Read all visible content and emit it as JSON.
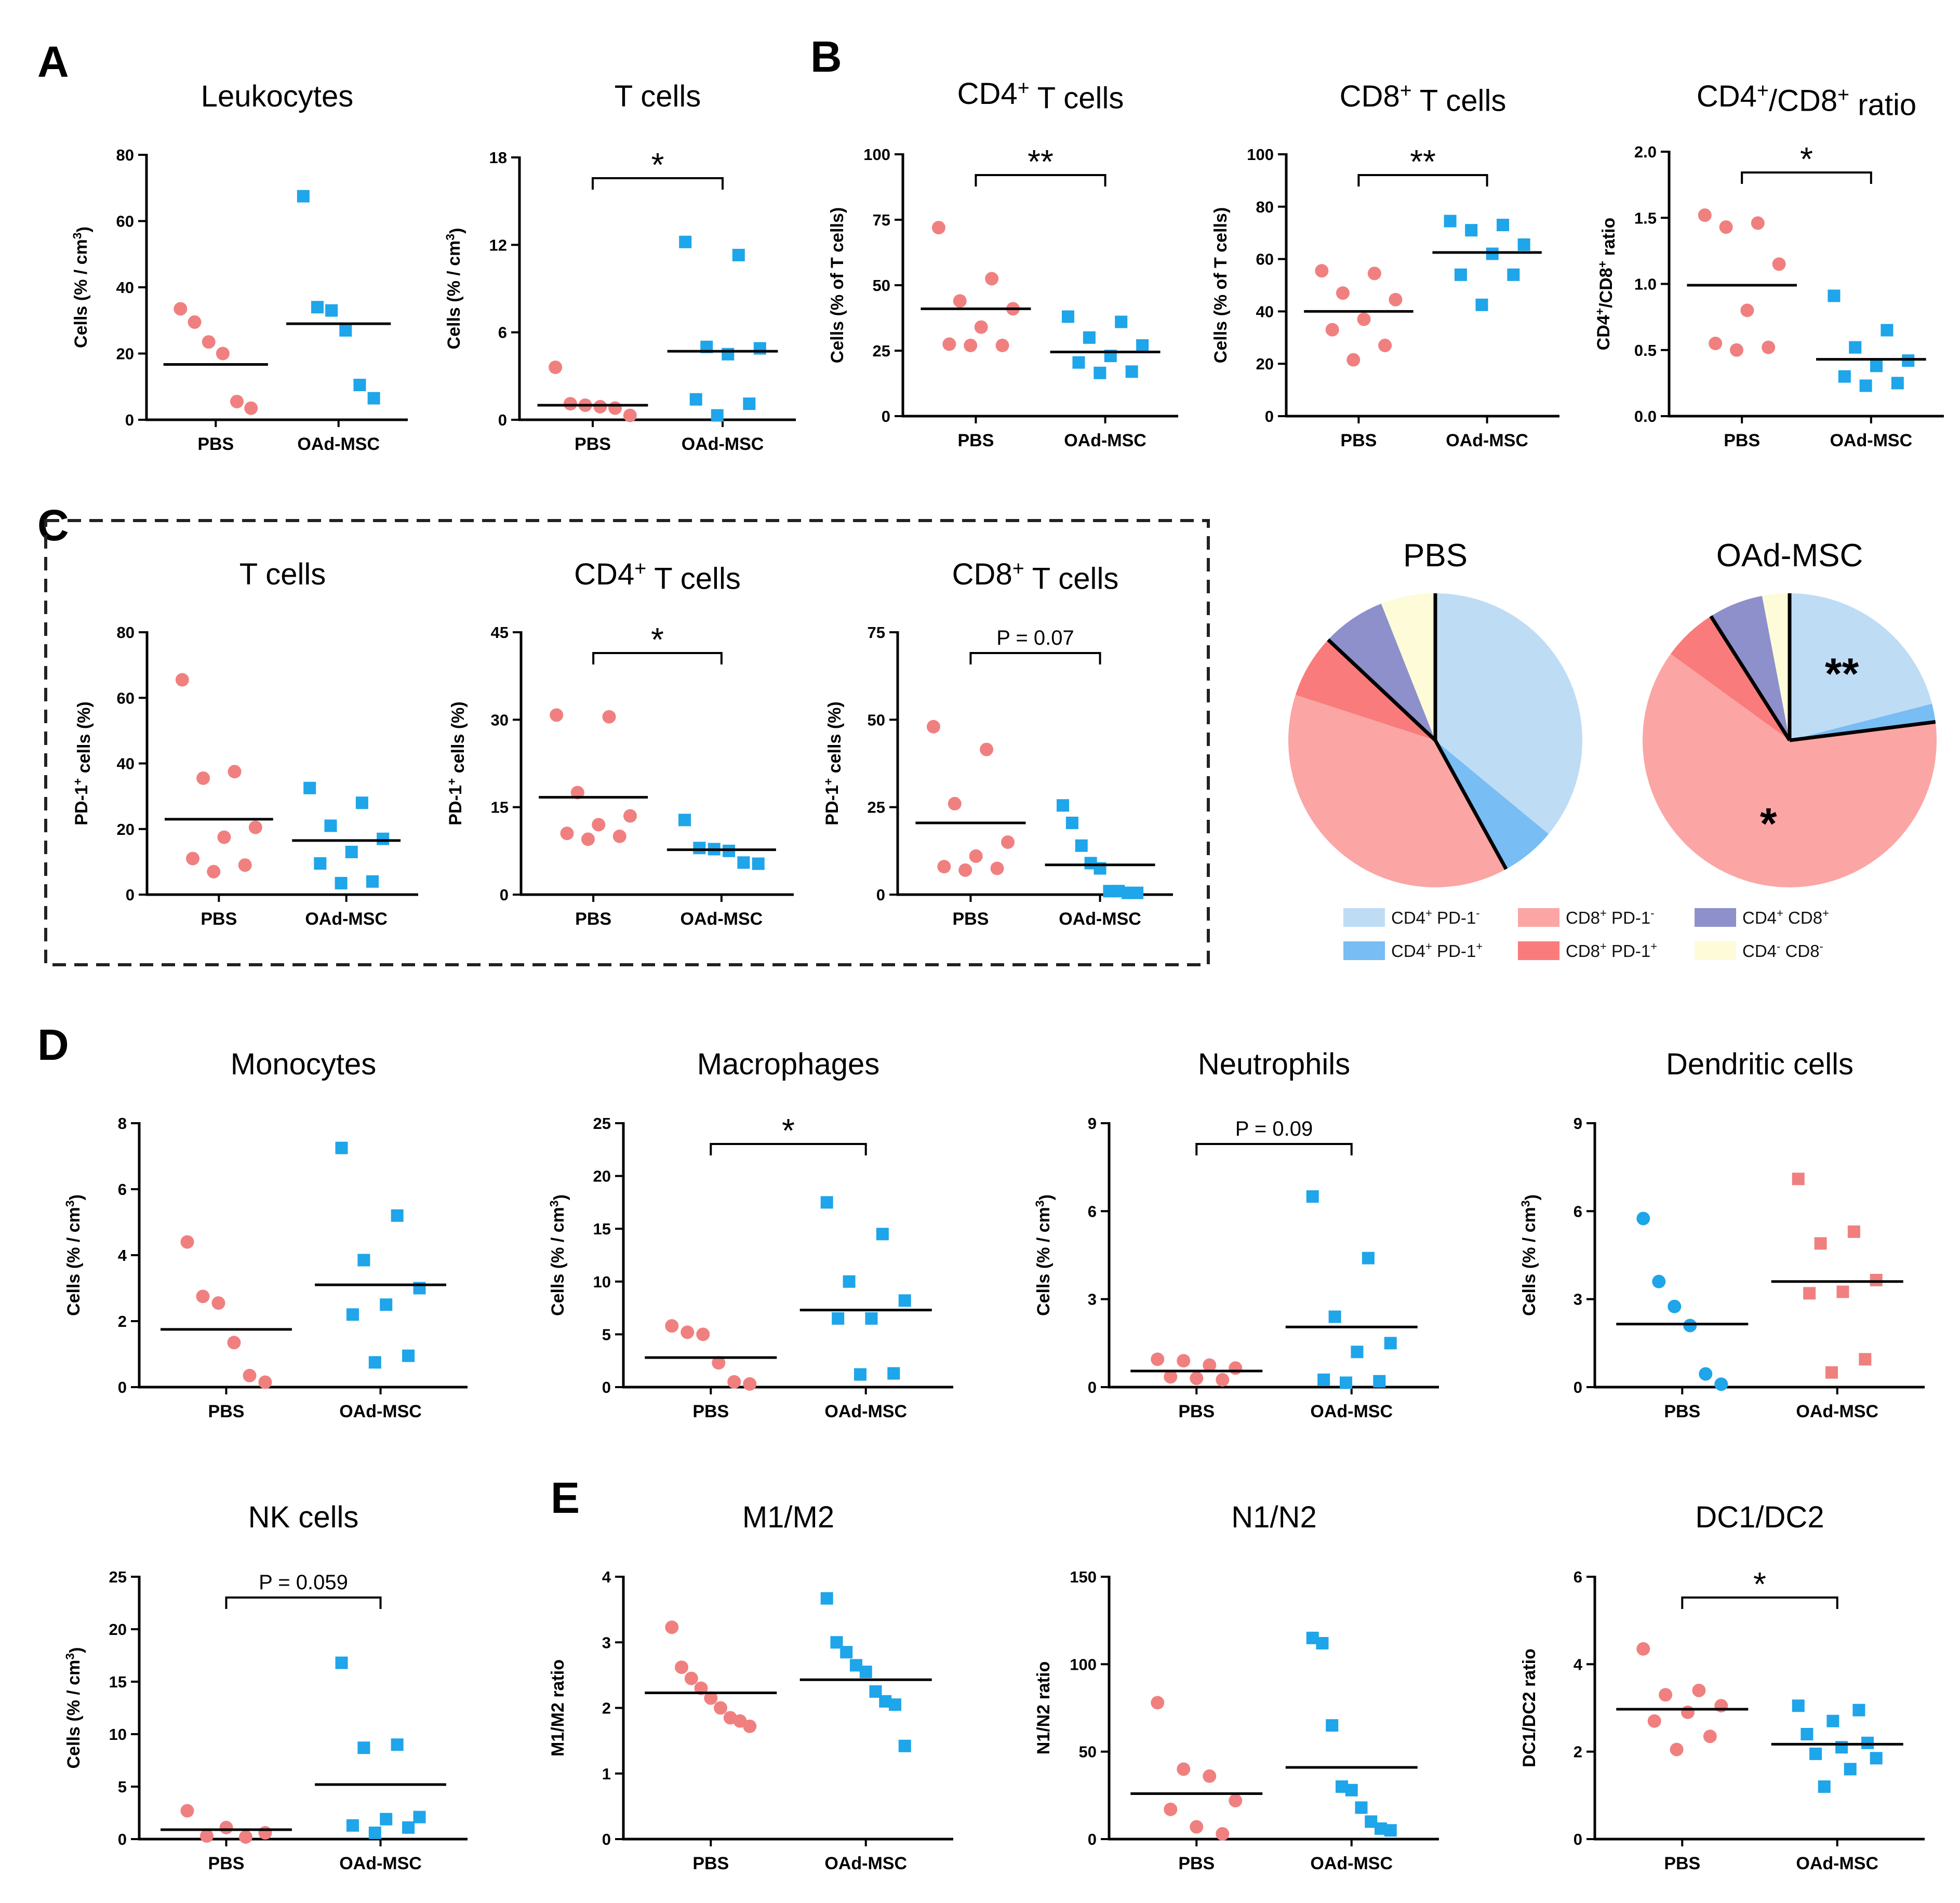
{
  "colors": {
    "pbs": "#f08080",
    "oad": "#1ea5ea",
    "axis": "#000000",
    "box_border": "#222222"
  },
  "panel_letters": [
    "A",
    "B",
    "C",
    "D",
    "E"
  ],
  "pie_legend": {
    "entries": [
      {
        "base": "CD4",
        "s1": "+",
        "mid": " PD-1",
        "s2": "-",
        "tail": "",
        "color": "#bfdcf5"
      },
      {
        "base": "CD4",
        "s1": "+",
        "mid": " PD-1",
        "s2": "+",
        "tail": "",
        "color": "#78bdf4"
      },
      {
        "base": "CD8",
        "s1": "+",
        "mid": " PD-1",
        "s2": "-",
        "tail": "",
        "color": "#fca5a5"
      },
      {
        "base": "CD8",
        "s1": "+",
        "mid": " PD-1",
        "s2": "+",
        "tail": "",
        "color": "#fa7b7b"
      },
      {
        "base": "CD4",
        "s1": "+",
        "mid": " CD8",
        "s2": "+",
        "tail": "",
        "color": "#8e90cc"
      },
      {
        "base": "CD4",
        "s1": "-",
        "mid": "  CD8",
        "s2": "-",
        "tail": "",
        "color": "#fefbd9"
      }
    ]
  },
  "chart_data": [
    {
      "id": "leukocytes",
      "panel": "A",
      "type": "scatter",
      "title": "Leukocytes",
      "ylabel": "Cells (% / cm3)",
      "ylim": [
        0,
        80
      ],
      "yticks": [
        0,
        20,
        40,
        60,
        80
      ],
      "categories": [
        "PBS",
        "OAd-MSC"
      ],
      "series": [
        {
          "name": "PBS",
          "marker": "circle",
          "values": [
            33.5,
            29.5,
            23.5,
            20,
            5.5,
            3.5
          ],
          "mean": 16.7
        },
        {
          "name": "OAd-MSC",
          "marker": "square",
          "values": [
            67.5,
            34,
            33,
            27,
            10.5,
            6.5
          ],
          "mean": 29
        }
      ],
      "significance": null
    },
    {
      "id": "tcells_a",
      "panel": "A",
      "type": "scatter",
      "title": "T cells",
      "ylabel": "Cells (% / cm3)",
      "ylim": [
        0,
        18
      ],
      "yticks": [
        0,
        6,
        12,
        18
      ],
      "categories": [
        "PBS",
        "OAd-MSC"
      ],
      "series": [
        {
          "name": "PBS",
          "marker": "circle",
          "values": [
            3.6,
            1.1,
            1.0,
            0.9,
            0.8,
            0.3
          ],
          "mean": 1.0
        },
        {
          "name": "OAd-MSC",
          "marker": "square",
          "values": [
            12.2,
            11.3,
            5.0,
            4.9,
            4.5,
            1.4,
            1.1,
            0.3
          ],
          "mean": 4.7
        }
      ],
      "significance": "*"
    },
    {
      "id": "cd4_tcells",
      "panel": "B",
      "type": "scatter",
      "title": "CD4+ T cells",
      "ylabel": "Cells (% of T cells)",
      "ylim": [
        0,
        100
      ],
      "yticks": [
        0,
        25,
        50,
        75,
        100
      ],
      "categories": [
        "PBS",
        "OAd-MSC"
      ],
      "series": [
        {
          "name": "PBS",
          "marker": "circle",
          "values": [
            72,
            52.5,
            44,
            41,
            34,
            27.5,
            27,
            27
          ],
          "mean": 41
        },
        {
          "name": "OAd-MSC",
          "marker": "square",
          "values": [
            38,
            36,
            30,
            27,
            23,
            20.5,
            17,
            16.5
          ],
          "mean": 24.5
        }
      ],
      "significance": "**"
    },
    {
      "id": "cd8_tcells",
      "panel": "B",
      "type": "scatter",
      "title": "CD8+ T cells",
      "ylabel": "Cells (% of T cells)",
      "ylim": [
        0,
        100
      ],
      "yticks": [
        0,
        20,
        40,
        60,
        80,
        100
      ],
      "categories": [
        "PBS",
        "OAd-MSC"
      ],
      "series": [
        {
          "name": "PBS",
          "marker": "circle",
          "values": [
            55.5,
            54.5,
            47,
            44.5,
            37,
            33,
            27,
            21.5
          ],
          "mean": 40
        },
        {
          "name": "OAd-MSC",
          "marker": "square",
          "values": [
            74.5,
            73,
            71,
            65.5,
            62,
            54,
            54,
            42.5
          ],
          "mean": 62.5
        }
      ],
      "significance": "**"
    },
    {
      "id": "cd4_cd8_ratio",
      "panel": "B",
      "type": "scatter",
      "title": "CD4+/CD8+  ratio",
      "ylabel": "CD4+/CD8+ ratio",
      "ylim": [
        0,
        2.0
      ],
      "yticks": [
        0.0,
        0.5,
        1.0,
        1.5,
        2.0
      ],
      "categories": [
        "PBS",
        "OAd-MSC"
      ],
      "series": [
        {
          "name": "PBS",
          "marker": "circle",
          "values": [
            1.52,
            1.46,
            1.43,
            1.15,
            0.8,
            0.55,
            0.52,
            0.5
          ],
          "mean": 0.99
        },
        {
          "name": "OAd-MSC",
          "marker": "square",
          "values": [
            0.91,
            0.65,
            0.52,
            0.42,
            0.38,
            0.3,
            0.25,
            0.23
          ],
          "mean": 0.43
        }
      ],
      "significance": "*"
    },
    {
      "id": "pd1_tcells",
      "panel": "C",
      "type": "scatter",
      "title": "T cells",
      "ylabel": "PD-1+ cells (%)",
      "ylim": [
        0,
        80
      ],
      "yticks": [
        0,
        20,
        40,
        60,
        80
      ],
      "categories": [
        "PBS",
        "OAd-MSC"
      ],
      "series": [
        {
          "name": "PBS",
          "marker": "circle",
          "values": [
            65.5,
            37.5,
            35.5,
            20.5,
            17.5,
            11,
            9,
            7
          ],
          "mean": 23
        },
        {
          "name": "OAd-MSC",
          "marker": "square",
          "values": [
            32.5,
            28,
            21,
            17,
            13,
            9.5,
            4,
            3.5
          ],
          "mean": 16.5
        }
      ],
      "significance": null
    },
    {
      "id": "pd1_cd4",
      "panel": "C",
      "type": "scatter",
      "title": "CD4+ T cells",
      "ylabel": "PD-1+ cells (%)",
      "ylim": [
        0,
        45
      ],
      "yticks": [
        0,
        15,
        30,
        45
      ],
      "categories": [
        "PBS",
        "OAd-MSC"
      ],
      "series": [
        {
          "name": "PBS",
          "marker": "circle",
          "values": [
            30.8,
            30.5,
            17.5,
            13.5,
            12,
            10.5,
            10,
            9.5
          ],
          "mean": 16.7
        },
        {
          "name": "OAd-MSC",
          "marker": "square",
          "values": [
            12.8,
            8,
            7.8,
            7.5,
            5.5,
            5.3
          ],
          "mean": 7.7
        }
      ],
      "significance": "*"
    },
    {
      "id": "pd1_cd8",
      "panel": "C",
      "type": "scatter",
      "title": "CD8+ T cells",
      "ylabel": "PD-1+ cells (%)",
      "ylim": [
        0,
        75
      ],
      "yticks": [
        0,
        25,
        50,
        75
      ],
      "categories": [
        "PBS",
        "OAd-MSC"
      ],
      "series": [
        {
          "name": "PBS",
          "marker": "circle",
          "values": [
            48,
            41.5,
            26,
            15,
            11,
            8,
            7.5,
            7
          ],
          "mean": 20.5
        },
        {
          "name": "OAd-MSC",
          "marker": "square",
          "values": [
            25.5,
            20.5,
            14,
            9,
            7.5,
            1,
            1,
            0.5,
            0.5
          ],
          "mean": 8.5
        }
      ],
      "significance": "P = 0.07"
    },
    {
      "id": "pie_pbs",
      "panel": "C",
      "type": "pie",
      "title": "PBS",
      "slices": [
        {
          "label": "CD4+ PD-1-",
          "value": 36,
          "color": "#bfdcf5"
        },
        {
          "label": "CD4+ PD-1+",
          "value": 6,
          "color": "#78bdf4"
        },
        {
          "label": "CD8+ PD-1-",
          "value": 38,
          "color": "#fca5a5"
        },
        {
          "label": "CD8+ PD-1+",
          "value": 7,
          "color": "#fa7b7b"
        },
        {
          "label": "CD4+ CD8+",
          "value": 7,
          "color": "#8e90cc"
        },
        {
          "label": "CD4- CD8-",
          "value": 6,
          "color": "#fefbd9"
        }
      ],
      "dividers_after": [
        1,
        3,
        5
      ],
      "annotations": []
    },
    {
      "id": "pie_oad",
      "panel": "C",
      "type": "pie",
      "title": "OAd-MSC",
      "slices": [
        {
          "label": "CD4+ PD-1-",
          "value": 21,
          "color": "#bfdcf5"
        },
        {
          "label": "CD4+ PD-1+",
          "value": 2,
          "color": "#78bdf4"
        },
        {
          "label": "CD8+ PD-1-",
          "value": 62,
          "color": "#fca5a5"
        },
        {
          "label": "CD8+ PD-1+",
          "value": 6,
          "color": "#fa7b7b"
        },
        {
          "label": "CD4+ CD8+",
          "value": 6,
          "color": "#8e90cc"
        },
        {
          "label": "CD4- CD8-",
          "value": 3,
          "color": "#fefbd9"
        }
      ],
      "dividers_after": [
        1,
        3,
        5
      ],
      "annotations": [
        {
          "text": "**",
          "slice": 0
        },
        {
          "text": "*",
          "slice": 2
        }
      ]
    },
    {
      "id": "monocytes",
      "panel": "D",
      "type": "scatter",
      "title": "Monocytes",
      "ylabel": "Cells (% / cm3)",
      "ylim": [
        0,
        8
      ],
      "yticks": [
        0,
        2,
        4,
        6,
        8
      ],
      "categories": [
        "PBS",
        "OAd-MSC"
      ],
      "series": [
        {
          "name": "PBS",
          "marker": "circle",
          "values": [
            4.4,
            2.75,
            2.55,
            1.35,
            0.35,
            0.15
          ],
          "mean": 1.75
        },
        {
          "name": "OAd-MSC",
          "marker": "square",
          "values": [
            7.25,
            5.2,
            3.85,
            3.0,
            2.5,
            2.2,
            0.95,
            0.75
          ],
          "mean": 3.1
        }
      ],
      "significance": null
    },
    {
      "id": "macrophages",
      "panel": "D",
      "type": "scatter",
      "title": "Macrophages",
      "ylabel": "Cells (% / cm3)",
      "ylim": [
        0,
        25
      ],
      "yticks": [
        0,
        5,
        10,
        15,
        20,
        25
      ],
      "categories": [
        "PBS",
        "OAd-MSC"
      ],
      "series": [
        {
          "name": "PBS",
          "marker": "circle",
          "values": [
            5.8,
            5.2,
            5.0,
            2.3,
            0.5,
            0.3
          ],
          "mean": 2.8
        },
        {
          "name": "OAd-MSC",
          "marker": "square",
          "values": [
            17.5,
            14.5,
            10,
            8.2,
            6.5,
            6.5,
            1.3,
            1.2
          ],
          "mean": 7.3
        }
      ],
      "significance": "*"
    },
    {
      "id": "neutrophils",
      "panel": "D",
      "type": "scatter",
      "title": "Neutrophils",
      "ylabel": "Cells (% / cm3)",
      "ylim": [
        0,
        9
      ],
      "yticks": [
        0,
        3,
        6,
        9
      ],
      "categories": [
        "PBS",
        "OAd-MSC"
      ],
      "series": [
        {
          "name": "PBS",
          "marker": "circle",
          "values": [
            0.95,
            0.9,
            0.75,
            0.65,
            0.35,
            0.3,
            0.25
          ],
          "mean": 0.55
        },
        {
          "name": "OAd-MSC",
          "marker": "square",
          "values": [
            6.5,
            4.4,
            2.4,
            1.5,
            1.2,
            0.25,
            0.2,
            0.15
          ],
          "mean": 2.05
        }
      ],
      "significance": "P = 0.09"
    },
    {
      "id": "dendritic",
      "panel": "D",
      "type": "scatter",
      "title": "Dendritic cells",
      "ylabel": "Cells (% / cm3)",
      "ylim": [
        0,
        9
      ],
      "yticks": [
        0,
        3,
        6,
        9
      ],
      "categories": [
        "PBS",
        "OAd-MSC"
      ],
      "series": [
        {
          "name": "PBS",
          "marker": "circle",
          "color": "#1ea5ea",
          "values": [
            5.75,
            3.6,
            2.75,
            2.1,
            0.45,
            0.1
          ],
          "mean": 2.15
        },
        {
          "name": "OAd-MSC",
          "marker": "square",
          "color": "#f08080",
          "values": [
            7.1,
            5.3,
            4.9,
            3.65,
            3.25,
            3.2,
            0.95,
            0.5
          ],
          "mean": 3.6
        }
      ],
      "significance": null
    },
    {
      "id": "nk_cells",
      "panel": "D",
      "type": "scatter",
      "title": "NK cells",
      "ylabel": "Cells (% / cm3)",
      "ylim": [
        0,
        25
      ],
      "yticks": [
        0,
        5,
        10,
        15,
        20,
        25
      ],
      "categories": [
        "PBS",
        "OAd-MSC"
      ],
      "series": [
        {
          "name": "PBS",
          "marker": "circle",
          "values": [
            2.7,
            1.1,
            0.6,
            0.3,
            0.2
          ],
          "mean": 0.9
        },
        {
          "name": "OAd-MSC",
          "marker": "square",
          "values": [
            16.8,
            9.0,
            8.7,
            2.1,
            1.9,
            1.3,
            1.1,
            0.6
          ],
          "mean": 5.2
        }
      ],
      "significance": "P = 0.059"
    },
    {
      "id": "m1m2",
      "panel": "E",
      "type": "scatter",
      "title": "M1/M2",
      "ylabel": "M1/M2 ratio",
      "ylim": [
        0,
        4
      ],
      "yticks": [
        0,
        1,
        2,
        3,
        4
      ],
      "categories": [
        "PBS",
        "OAd-MSC"
      ],
      "series": [
        {
          "name": "PBS",
          "marker": "circle",
          "values": [
            3.23,
            2.62,
            2.45,
            2.3,
            2.15,
            2.0,
            1.85,
            1.8,
            1.72
          ],
          "mean": 2.23
        },
        {
          "name": "OAd-MSC",
          "marker": "square",
          "values": [
            3.67,
            3.0,
            2.85,
            2.65,
            2.55,
            2.25,
            2.1,
            2.05,
            1.42
          ],
          "mean": 2.43
        }
      ],
      "significance": null
    },
    {
      "id": "n1n2",
      "panel": "E",
      "type": "scatter",
      "title": "N1/N2",
      "ylabel": "N1/N2 ratio",
      "ylim": [
        0,
        150
      ],
      "yticks": [
        0,
        50,
        100,
        150
      ],
      "categories": [
        "PBS",
        "OAd-MSC"
      ],
      "series": [
        {
          "name": "PBS",
          "marker": "circle",
          "values": [
            78,
            40,
            36,
            22,
            17,
            7,
            3
          ],
          "mean": 26
        },
        {
          "name": "OAd-MSC",
          "marker": "square",
          "values": [
            115,
            112,
            65,
            30,
            28,
            18,
            10,
            6,
            5
          ],
          "mean": 41
        }
      ],
      "significance": null
    },
    {
      "id": "dc1dc2",
      "panel": "E",
      "type": "scatter",
      "title": "DC1/DC2",
      "ylabel": "DC1/DC2 ratio",
      "ylim": [
        0,
        6
      ],
      "yticks": [
        0,
        2,
        4,
        6
      ],
      "categories": [
        "PBS",
        "OAd-MSC"
      ],
      "series": [
        {
          "name": "PBS",
          "marker": "circle",
          "values": [
            4.35,
            3.4,
            3.3,
            3.05,
            2.9,
            2.7,
            2.35,
            2.05
          ],
          "mean": 2.97
        },
        {
          "name": "OAd-MSC",
          "marker": "square",
          "values": [
            3.05,
            2.95,
            2.7,
            2.4,
            2.2,
            2.1,
            1.95,
            1.85,
            1.6,
            1.2
          ],
          "mean": 2.17
        }
      ],
      "significance": "*"
    }
  ]
}
